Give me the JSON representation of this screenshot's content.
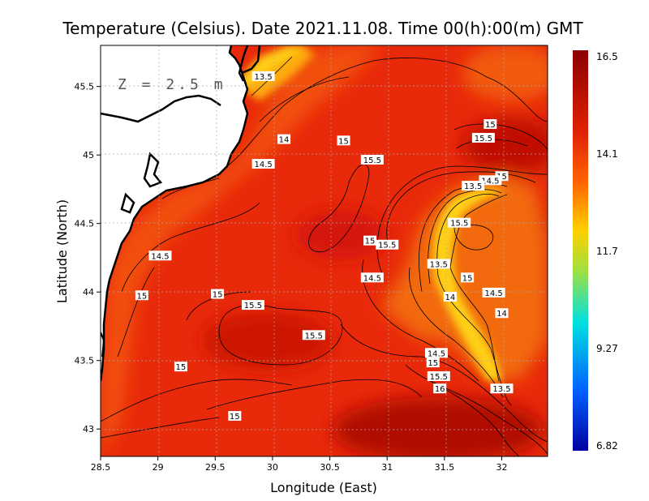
{
  "title": "Temperature (Celsius). Date 2021.11.08. Time 00(h):00(m) GMT",
  "depth_label": "Z = 2.5 m",
  "axes": {
    "xlabel": "Longitude (East)",
    "ylabel": "Latitude (North)",
    "xlim": [
      28.5,
      32.4
    ],
    "ylim": [
      42.8,
      45.8
    ],
    "x_ticks": [
      "28.5",
      "29",
      "29.5",
      "30",
      "30.5",
      "31",
      "31.5",
      "32"
    ],
    "y_ticks": [
      "43",
      "43.5",
      "44",
      "44.5",
      "45",
      "45.5"
    ]
  },
  "colorbar": {
    "labels": [
      "16.5",
      "14.1",
      "11.7",
      "9.27",
      "6.82"
    ],
    "colors": [
      "#8b0000",
      "#e02000",
      "#ff6400",
      "#ffd000",
      "#a0e040",
      "#00e0e0",
      "#0060ff",
      "#0000a0"
    ]
  },
  "contour_labels": [
    {
      "text": "13.5",
      "lon": 29.92,
      "lat": 45.57
    },
    {
      "text": "14",
      "lon": 30.1,
      "lat": 45.11
    },
    {
      "text": "15",
      "lon": 30.62,
      "lat": 45.1
    },
    {
      "text": "15",
      "lon": 31.9,
      "lat": 45.22
    },
    {
      "text": "15.5",
      "lon": 31.84,
      "lat": 45.12
    },
    {
      "text": "14.5",
      "lon": 29.92,
      "lat": 44.93
    },
    {
      "text": "15.5",
      "lon": 30.87,
      "lat": 44.96
    },
    {
      "text": "15",
      "lon": 32.0,
      "lat": 44.84
    },
    {
      "text": "14.5",
      "lon": 31.9,
      "lat": 44.81
    },
    {
      "text": "13.5",
      "lon": 31.75,
      "lat": 44.77
    },
    {
      "text": "15.5",
      "lon": 31.63,
      "lat": 44.5
    },
    {
      "text": "15",
      "lon": 30.85,
      "lat": 44.37
    },
    {
      "text": "15.5",
      "lon": 31.0,
      "lat": 44.34
    },
    {
      "text": "14.5",
      "lon": 29.02,
      "lat": 44.26
    },
    {
      "text": "13.5",
      "lon": 31.45,
      "lat": 44.2
    },
    {
      "text": "15",
      "lon": 31.7,
      "lat": 44.1
    },
    {
      "text": "14.5",
      "lon": 30.87,
      "lat": 44.1
    },
    {
      "text": "15",
      "lon": 28.86,
      "lat": 43.97
    },
    {
      "text": "15",
      "lon": 29.52,
      "lat": 43.98
    },
    {
      "text": "14.5",
      "lon": 31.93,
      "lat": 43.99
    },
    {
      "text": "14",
      "lon": 31.55,
      "lat": 43.96
    },
    {
      "text": "15.5",
      "lon": 29.83,
      "lat": 43.9
    },
    {
      "text": "14",
      "lon": 32.0,
      "lat": 43.84
    },
    {
      "text": "15.5",
      "lon": 30.36,
      "lat": 43.68
    },
    {
      "text": "14.5",
      "lon": 31.43,
      "lat": 43.55
    },
    {
      "text": "15",
      "lon": 31.4,
      "lat": 43.48
    },
    {
      "text": "15",
      "lon": 29.2,
      "lat": 43.45
    },
    {
      "text": "15.5",
      "lon": 31.45,
      "lat": 43.38
    },
    {
      "text": "16",
      "lon": 31.46,
      "lat": 43.29
    },
    {
      "text": "13.5",
      "lon": 32.0,
      "lat": 43.29
    },
    {
      "text": "15",
      "lon": 29.67,
      "lat": 43.09
    }
  ]
}
